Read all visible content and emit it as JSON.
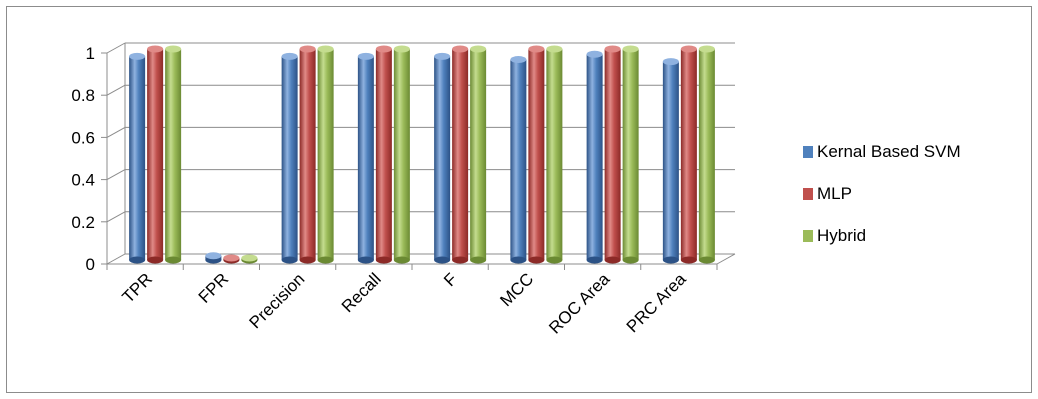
{
  "chart_data": {
    "type": "bar",
    "style": "3d-cylinder",
    "categories": [
      "TPR",
      "FPR",
      "Precision",
      "Recall",
      "F",
      "MCC",
      "ROC Area",
      "PRC Area"
    ],
    "series": [
      {
        "name": "Kernal Based SVM",
        "values": [
          0.965,
          0.02,
          0.965,
          0.965,
          0.965,
          0.95,
          0.975,
          0.94
        ]
      },
      {
        "name": "MLP",
        "values": [
          1.0,
          0.0,
          1.0,
          1.0,
          1.0,
          1.0,
          1.0,
          1.0
        ]
      },
      {
        "name": "Hybrid",
        "values": [
          1.0,
          0.0,
          1.0,
          1.0,
          1.0,
          1.0,
          1.0,
          1.0
        ]
      }
    ],
    "ylim": [
      0,
      1
    ],
    "yticks": [
      "0",
      "0.2",
      "0.4",
      "0.6",
      "0.8",
      "1"
    ],
    "grid": true,
    "legend_position": "right"
  },
  "colors": {
    "series": [
      "#4f81bd",
      "#c0504d",
      "#9bbb59"
    ],
    "series_dark": [
      "#2c5286",
      "#8c2a27",
      "#6b8a33"
    ],
    "series_light": [
      "#8fb2e0",
      "#e08a87",
      "#c4dc8f"
    ],
    "grid": "#8c8c8c"
  }
}
